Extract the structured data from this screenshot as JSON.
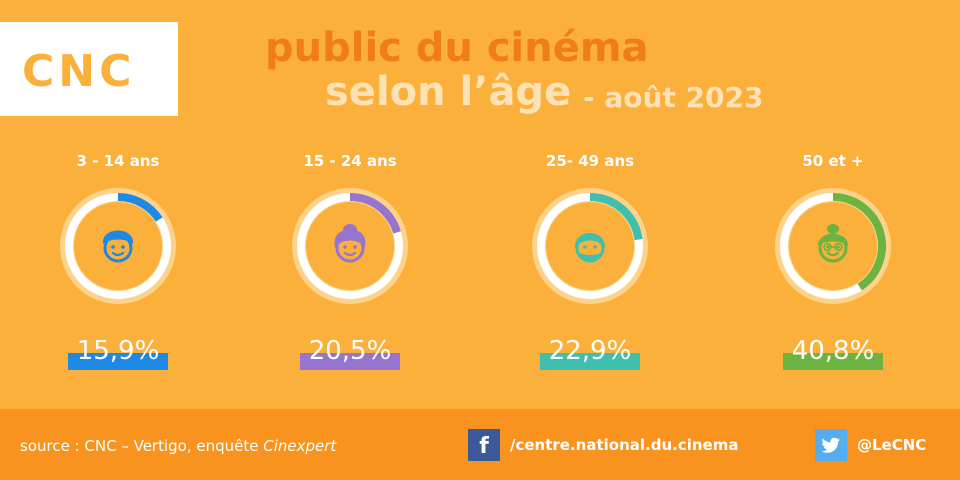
{
  "logo": {
    "text": "CNC"
  },
  "title": {
    "line1": "public du cinéma",
    "line2": "selon l’âge",
    "line3": "- août 2023"
  },
  "colors": {
    "background": "#fbb03b",
    "footer": "#f7931e",
    "title_orange": "#f07d16",
    "title_cream": "#fde2b5",
    "ring_outer": "#fdd28a",
    "ring_inner": "#ffffff"
  },
  "chart_data": {
    "type": "pie",
    "categories": [
      "3 - 14 ans",
      "15 - 24 ans",
      "25- 49 ans",
      "50 et +"
    ],
    "values": [
      15.9,
      20.5,
      22.9,
      40.8
    ],
    "value_labels": [
      "15,9%",
      "20,5%",
      "22,9%",
      "40,8%"
    ],
    "series_colors": [
      "#1e88e5",
      "#9575cd",
      "#3fbfad",
      "#6db33f"
    ],
    "icons": [
      "child-face-icon",
      "young-woman-face-icon",
      "bearded-man-face-icon",
      "elderly-woman-face-icon"
    ],
    "unit": "%"
  },
  "footer": {
    "source_prefix": "source : CNC – Vertigo, enquête ",
    "source_italic": "Cinexpert",
    "facebook_icon": "facebook-icon",
    "facebook_text": "/centre.national.du.cinema",
    "twitter_icon": "twitter-icon",
    "twitter_text": "@LeCNC"
  }
}
